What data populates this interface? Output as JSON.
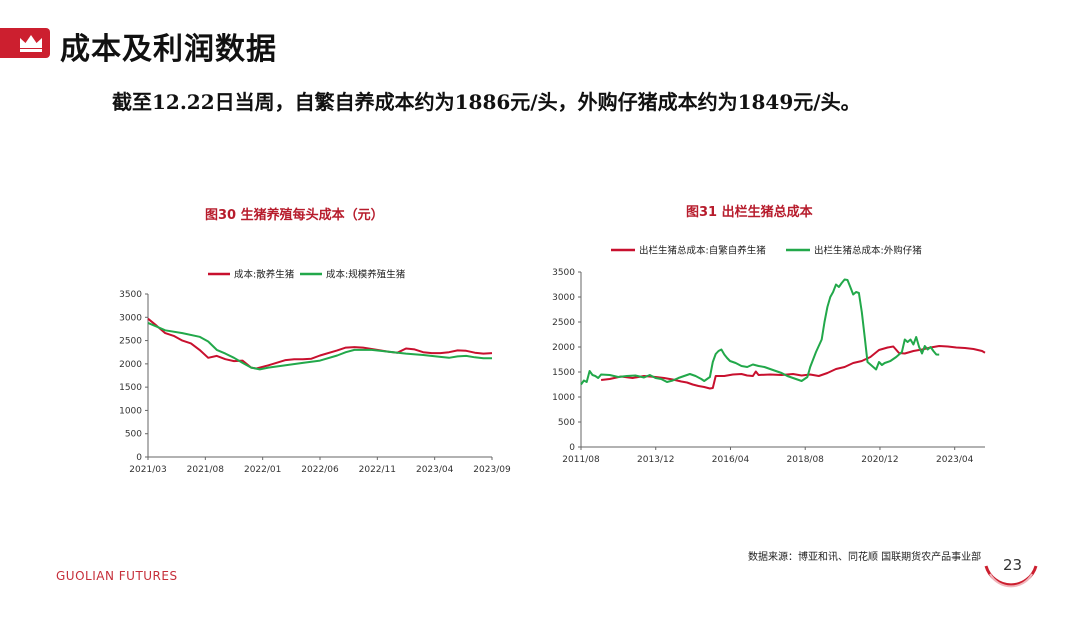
{
  "header": {
    "title": "成本及利润数据",
    "summary": "截至12.22日当周，自繁自养成本约为1886元/头，外购仔猪成本约为1849元/头。"
  },
  "footer": {
    "brand": "GUOLIAN FUTURES",
    "source": "数据来源：博亚和讯、同花顺 国联期货农产品事业部",
    "page": "23"
  },
  "colors": {
    "red": "#c8102e",
    "green": "#22a84a",
    "accent": "#cc1f2f"
  },
  "chart_data": [
    {
      "type": "line",
      "title": "图30 生猪养殖每头成本（元）",
      "xlabel": "",
      "ylabel": "",
      "x_ticks": [
        "2021/03",
        "2021/08",
        "2022/01",
        "2022/06",
        "2022/11",
        "2023/04",
        "2023/09"
      ],
      "y_ticks": [
        "0",
        "500",
        "1000",
        "1500",
        "2000",
        "2500",
        "3000",
        "3500"
      ],
      "ylim": [
        0,
        3500
      ],
      "legend": "top",
      "series": [
        {
          "name": "成本:散养生猪",
          "color": "#c8102e",
          "points": [
            [
              0,
              2970
            ],
            [
              0.5,
              2820
            ],
            [
              1,
              2660
            ],
            [
              1.5,
              2600
            ],
            [
              2,
              2500
            ],
            [
              2.5,
              2440
            ],
            [
              3,
              2300
            ],
            [
              3.5,
              2130
            ],
            [
              4,
              2170
            ],
            [
              4.5,
              2100
            ],
            [
              5,
              2060
            ],
            [
              5.5,
              2070
            ],
            [
              6,
              1920
            ],
            [
              6.3,
              1900
            ],
            [
              7,
              1970
            ],
            [
              8,
              2080
            ],
            [
              8.5,
              2100
            ],
            [
              9,
              2100
            ],
            [
              9.5,
              2110
            ],
            [
              10,
              2180
            ],
            [
              11,
              2290
            ],
            [
              11.5,
              2350
            ],
            [
              12,
              2360
            ],
            [
              12.5,
              2350
            ],
            [
              13,
              2320
            ],
            [
              14,
              2260
            ],
            [
              14.5,
              2240
            ],
            [
              15,
              2330
            ],
            [
              15.5,
              2310
            ],
            [
              16,
              2250
            ],
            [
              16.5,
              2230
            ],
            [
              17,
              2230
            ],
            [
              17.5,
              2250
            ],
            [
              18,
              2290
            ],
            [
              18.5,
              2280
            ],
            [
              19,
              2240
            ],
            [
              19.5,
              2220
            ],
            [
              20,
              2230
            ]
          ]
        },
        {
          "name": "成本:规模养殖生猪",
          "color": "#22a84a",
          "points": [
            [
              0,
              2880
            ],
            [
              0.5,
              2800
            ],
            [
              1,
              2720
            ],
            [
              2,
              2660
            ],
            [
              3,
              2580
            ],
            [
              3.5,
              2480
            ],
            [
              4,
              2300
            ],
            [
              4.5,
              2220
            ],
            [
              5,
              2130
            ],
            [
              5.5,
              2020
            ],
            [
              6,
              1920
            ],
            [
              6.5,
              1880
            ],
            [
              7,
              1920
            ],
            [
              8,
              1970
            ],
            [
              9,
              2020
            ],
            [
              10,
              2070
            ],
            [
              11,
              2180
            ],
            [
              11.5,
              2250
            ],
            [
              12,
              2300
            ],
            [
              13,
              2300
            ],
            [
              14,
              2260
            ],
            [
              15,
              2220
            ],
            [
              16,
              2190
            ],
            [
              17,
              2150
            ],
            [
              17.5,
              2130
            ],
            [
              18,
              2160
            ],
            [
              18.5,
              2170
            ],
            [
              19,
              2140
            ],
            [
              19.5,
              2120
            ],
            [
              20,
              2120
            ]
          ]
        }
      ]
    },
    {
      "type": "line",
      "title": "图31 出栏生猪总成本",
      "xlabel": "",
      "ylabel": "",
      "x_ticks": [
        "2011/08",
        "2013/12",
        "2016/04",
        "2018/08",
        "2020/12",
        "2023/04"
      ],
      "y_ticks": [
        "0",
        "500",
        "1000",
        "1500",
        "2000",
        "2500",
        "3000",
        "3500"
      ],
      "ylim": [
        0,
        3500
      ],
      "legend": "top",
      "series": [
        {
          "name": "出栏生猪总成本:自繁自养生猪",
          "color": "#c8102e",
          "points": [
            [
              7,
              1340
            ],
            [
              10,
              1360
            ],
            [
              14,
              1410
            ],
            [
              18,
              1380
            ],
            [
              22,
              1420
            ],
            [
              26,
              1400
            ],
            [
              29,
              1380
            ],
            [
              32,
              1350
            ],
            [
              35,
              1310
            ],
            [
              37,
              1290
            ],
            [
              39,
              1250
            ],
            [
              41,
              1220
            ],
            [
              43,
              1200
            ],
            [
              45,
              1170
            ],
            [
              46,
              1180
            ],
            [
              47,
              1420
            ],
            [
              50,
              1420
            ],
            [
              53,
              1450
            ],
            [
              56,
              1460
            ],
            [
              58,
              1430
            ],
            [
              60,
              1420
            ],
            [
              61,
              1510
            ],
            [
              62,
              1440
            ],
            [
              66,
              1450
            ],
            [
              70,
              1440
            ],
            [
              74,
              1460
            ],
            [
              77,
              1430
            ],
            [
              80,
              1450
            ],
            [
              83,
              1420
            ],
            [
              86,
              1480
            ],
            [
              89,
              1560
            ],
            [
              92,
              1600
            ],
            [
              95,
              1680
            ],
            [
              98,
              1720
            ],
            [
              101,
              1800
            ],
            [
              104,
              1940
            ],
            [
              107,
              1990
            ],
            [
              109,
              2010
            ],
            [
              111,
              1880
            ],
            [
              113,
              1870
            ],
            [
              116,
              1920
            ],
            [
              119,
              1950
            ],
            [
              122,
              1990
            ],
            [
              125,
              2020
            ],
            [
              128,
              2010
            ],
            [
              131,
              1990
            ],
            [
              134,
              1980
            ],
            [
              137,
              1960
            ],
            [
              140,
              1920
            ],
            [
              141,
              1886
            ]
          ]
        },
        {
          "name": "出栏生猪总成本:外购仔猪",
          "color": "#22a84a",
          "points": [
            [
              0,
              1250
            ],
            [
              1,
              1330
            ],
            [
              2,
              1300
            ],
            [
              3,
              1520
            ],
            [
              4,
              1440
            ],
            [
              5,
              1420
            ],
            [
              6,
              1380
            ],
            [
              7,
              1450
            ],
            [
              10,
              1440
            ],
            [
              13,
              1400
            ],
            [
              16,
              1420
            ],
            [
              19,
              1430
            ],
            [
              22,
              1390
            ],
            [
              24,
              1440
            ],
            [
              26,
              1380
            ],
            [
              28,
              1360
            ],
            [
              30,
              1300
            ],
            [
              32,
              1330
            ],
            [
              34,
              1380
            ],
            [
              36,
              1420
            ],
            [
              38,
              1460
            ],
            [
              40,
              1420
            ],
            [
              42,
              1360
            ],
            [
              43,
              1320
            ],
            [
              45,
              1400
            ],
            [
              46,
              1700
            ],
            [
              47,
              1860
            ],
            [
              48,
              1920
            ],
            [
              49,
              1950
            ],
            [
              50,
              1850
            ],
            [
              51,
              1780
            ],
            [
              52,
              1720
            ],
            [
              54,
              1680
            ],
            [
              56,
              1620
            ],
            [
              58,
              1600
            ],
            [
              60,
              1650
            ],
            [
              62,
              1620
            ],
            [
              64,
              1600
            ],
            [
              66,
              1560
            ],
            [
              68,
              1520
            ],
            [
              70,
              1480
            ],
            [
              72,
              1420
            ],
            [
              74,
              1380
            ],
            [
              76,
              1340
            ],
            [
              77,
              1320
            ],
            [
              79,
              1400
            ],
            [
              80,
              1600
            ],
            [
              82,
              1900
            ],
            [
              84,
              2150
            ],
            [
              85,
              2500
            ],
            [
              86,
              2800
            ],
            [
              87,
              3000
            ],
            [
              88,
              3100
            ],
            [
              89,
              3250
            ],
            [
              90,
              3200
            ],
            [
              91,
              3280
            ],
            [
              92,
              3350
            ],
            [
              93,
              3340
            ],
            [
              94,
              3200
            ],
            [
              95,
              3050
            ],
            [
              96,
              3100
            ],
            [
              97,
              3080
            ],
            [
              98,
              2700
            ],
            [
              99,
              2200
            ],
            [
              100,
              1700
            ],
            [
              101,
              1650
            ],
            [
              103,
              1550
            ],
            [
              104,
              1700
            ],
            [
              105,
              1640
            ],
            [
              106,
              1680
            ],
            [
              108,
              1720
            ],
            [
              110,
              1800
            ],
            [
              112,
              1900
            ],
            [
              113,
              2150
            ],
            [
              114,
              2100
            ],
            [
              115,
              2150
            ],
            [
              116,
              2050
            ],
            [
              117,
              2200
            ],
            [
              118,
              2000
            ],
            [
              119,
              1870
            ],
            [
              120,
              2020
            ],
            [
              121,
              1950
            ],
            [
              122,
              2000
            ],
            [
              123,
              1920
            ],
            [
              124,
              1850
            ],
            [
              125,
              1849
            ]
          ]
        }
      ]
    }
  ]
}
